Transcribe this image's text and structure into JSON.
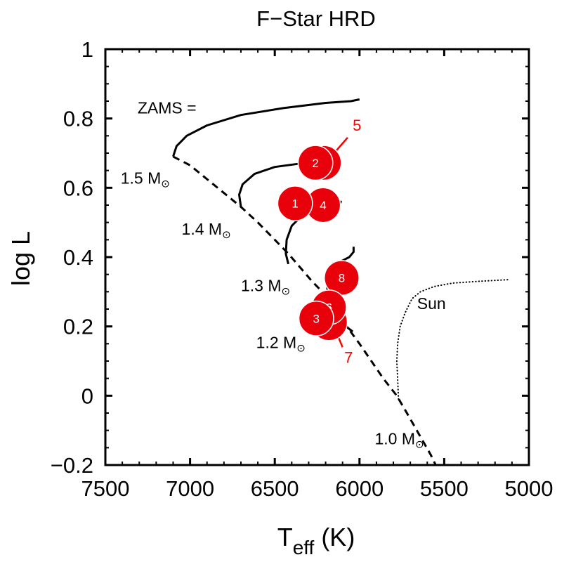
{
  "chart_data": {
    "type": "line",
    "title": "F−Star HRD",
    "xlabel_main": "T",
    "xlabel_sub": "eff",
    "xlabel_unit": " (K)",
    "ylabel": "log L",
    "xlim": [
      7500,
      5000
    ],
    "ylim": [
      -0.2,
      1.0
    ],
    "xticks": [
      7500,
      7000,
      6500,
      6000,
      5500,
      5000
    ],
    "xtick_labels": [
      "7500",
      "7000",
      "6500",
      "6000",
      "5500",
      "5000"
    ],
    "yticks": [
      -0.2,
      0,
      0.2,
      0.4,
      0.6,
      0.8,
      1.0
    ],
    "ytick_labels": [
      "−0.2",
      "0",
      "0.2",
      "0.4",
      "0.6",
      "0.8",
      "1"
    ],
    "colors": {
      "axis": "#000000",
      "track": "#000000",
      "marker": "#e8000b",
      "marker_edge": "#ffffff",
      "red_label": "#ff0000"
    },
    "zams_legend": "ZAMS =",
    "solar_mass_symbol": "⊙",
    "sun_label": "Sun",
    "series": [
      {
        "name": "1.5 Msun track",
        "style": "solid",
        "points": [
          [
            7100,
            0.69
          ],
          [
            7080,
            0.72
          ],
          [
            7020,
            0.75
          ],
          [
            6900,
            0.78
          ],
          [
            6700,
            0.81
          ],
          [
            6450,
            0.83
          ],
          [
            6200,
            0.845
          ],
          [
            6050,
            0.85
          ],
          [
            6000,
            0.855
          ]
        ]
      },
      {
        "name": "1.4 Msun track",
        "style": "solid",
        "points": [
          [
            6700,
            0.545
          ],
          [
            6710,
            0.58
          ],
          [
            6690,
            0.61
          ],
          [
            6620,
            0.64
          ],
          [
            6500,
            0.66
          ],
          [
            6350,
            0.67
          ],
          [
            6250,
            0.672
          ],
          [
            6200,
            0.675
          ]
        ]
      },
      {
        "name": "1.3 Msun track",
        "style": "solid",
        "points": [
          [
            6420,
            0.38
          ],
          [
            6435,
            0.41
          ],
          [
            6430,
            0.45
          ],
          [
            6400,
            0.49
          ],
          [
            6340,
            0.52
          ],
          [
            6270,
            0.54
          ],
          [
            6200,
            0.55
          ],
          [
            6150,
            0.555
          ],
          [
            6110,
            0.56
          ],
          [
            6115,
            0.555
          ]
        ]
      },
      {
        "name": "1.2 Msun track",
        "style": "solid",
        "points": [
          [
            6170,
            0.27
          ],
          [
            6190,
            0.29
          ],
          [
            6190,
            0.32
          ],
          [
            6175,
            0.35
          ],
          [
            6140,
            0.38
          ],
          [
            6100,
            0.39
          ],
          [
            6060,
            0.4
          ],
          [
            6035,
            0.415
          ],
          [
            6035,
            0.43
          ]
        ]
      },
      {
        "name": "1.2 Msun segment",
        "style": "solid",
        "points": [
          [
            6120,
            0.215
          ],
          [
            6080,
            0.2
          ],
          [
            6040,
            0.185
          ]
        ]
      },
      {
        "name": "ZAMS",
        "style": "dashed",
        "points": [
          [
            7100,
            0.69
          ],
          [
            7000,
            0.665
          ],
          [
            6900,
            0.625
          ],
          [
            6800,
            0.585
          ],
          [
            6700,
            0.545
          ],
          [
            6600,
            0.5
          ],
          [
            6500,
            0.45
          ],
          [
            6420,
            0.41
          ],
          [
            6350,
            0.37
          ],
          [
            6280,
            0.33
          ],
          [
            6220,
            0.3
          ],
          [
            6170,
            0.27
          ],
          [
            6120,
            0.23
          ],
          [
            6060,
            0.19
          ],
          [
            6000,
            0.15
          ],
          [
            5930,
            0.1
          ],
          [
            5860,
            0.05
          ],
          [
            5780,
            0.0
          ],
          [
            5720,
            -0.05
          ],
          [
            5650,
            -0.11
          ],
          [
            5580,
            -0.17
          ],
          [
            5550,
            -0.2
          ]
        ]
      },
      {
        "name": "Sun track",
        "style": "dotted",
        "points": [
          [
            5770,
            -0.01
          ],
          [
            5775,
            0.05
          ],
          [
            5780,
            0.1
          ],
          [
            5775,
            0.15
          ],
          [
            5760,
            0.2
          ],
          [
            5730,
            0.24
          ],
          [
            5690,
            0.28
          ],
          [
            5640,
            0.3
          ],
          [
            5560,
            0.315
          ],
          [
            5450,
            0.325
          ],
          [
            5300,
            0.33
          ],
          [
            5120,
            0.335
          ]
        ]
      }
    ],
    "stars": [
      {
        "label": "5",
        "x": 6210,
        "y": 0.672,
        "r": 0.05
      },
      {
        "label": "2",
        "x": 6260,
        "y": 0.672,
        "r": 0.05
      },
      {
        "label": "4",
        "x": 6215,
        "y": 0.55,
        "r": 0.05
      },
      {
        "label": "1",
        "x": 6380,
        "y": 0.555,
        "r": 0.05
      },
      {
        "label": "8",
        "x": 6105,
        "y": 0.34,
        "r": 0.05
      },
      {
        "label": "7",
        "x": 6180,
        "y": 0.212,
        "r": 0.053
      },
      {
        "label": "6",
        "x": 6180,
        "y": 0.255,
        "r": 0.05
      },
      {
        "label": "3",
        "x": 6255,
        "y": 0.223,
        "r": 0.05
      }
    ],
    "leader_lines": [
      {
        "from": [
          6150,
          0.7
        ],
        "to": [
          6070,
          0.745
        ]
      },
      {
        "from": [
          6140,
          0.187
        ],
        "to": [
          6100,
          0.14
        ]
      }
    ],
    "annotations": [
      {
        "id": "zams",
        "text": "ZAMS =",
        "x": 7310,
        "y": 0.815
      },
      {
        "id": "mass-1-5",
        "text": "1.5 M",
        "x": 7410,
        "y": 0.612
      },
      {
        "id": "mass-1-4",
        "text": "1.4 M",
        "x": 7050,
        "y": 0.465
      },
      {
        "id": "mass-1-3",
        "text": "1.3 M",
        "x": 6700,
        "y": 0.302
      },
      {
        "id": "mass-1-2",
        "text": "1.2 M",
        "x": 6610,
        "y": 0.138
      },
      {
        "id": "mass-1-0",
        "text": "1.0 M",
        "x": 5910,
        "y": -0.14
      },
      {
        "id": "sun",
        "text": "Sun",
        "x": 5660,
        "y": 0.25
      }
    ],
    "red_labels": [
      {
        "text": "5",
        "x": 6040,
        "y": 0.765
      },
      {
        "text": "7",
        "x": 6090,
        "y": 0.095
      }
    ]
  }
}
